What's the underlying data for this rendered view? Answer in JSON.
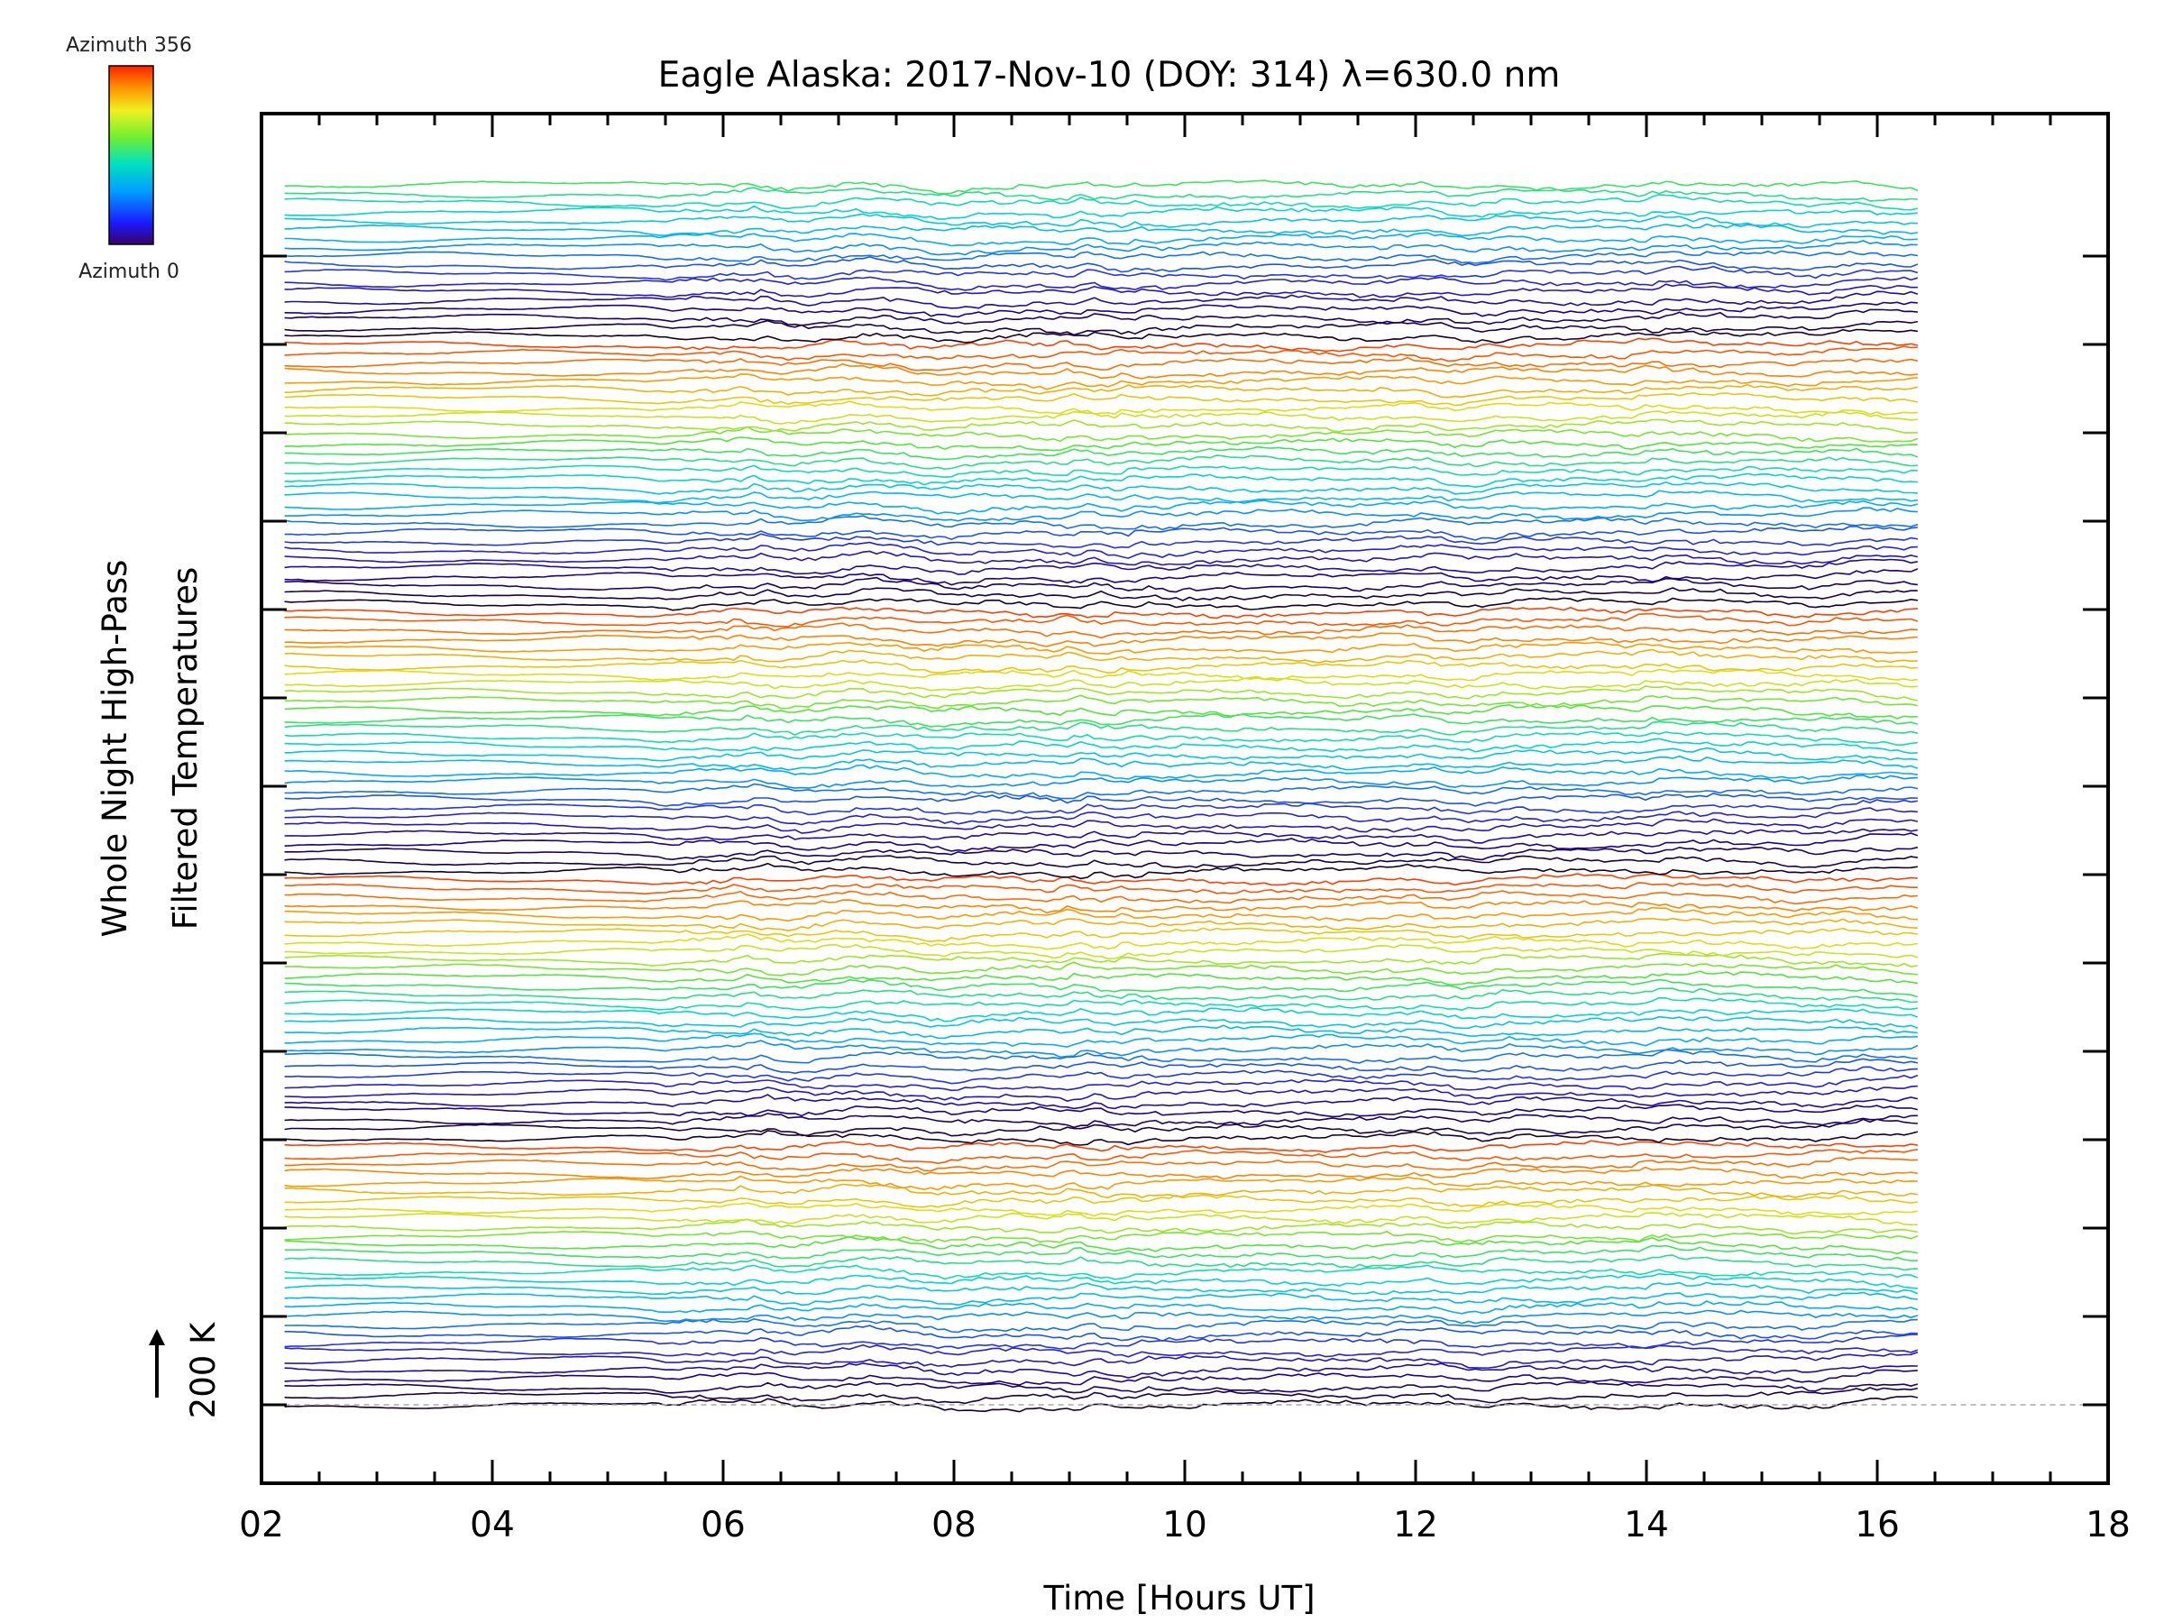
{
  "chart_data": {
    "type": "line",
    "title": "Eagle Alaska: 2017-Nov-10 (DOY: 314) λ=630.0 nm",
    "xlabel": "Time [Hours UT]",
    "ylabel_line1": "Whole Night High-Pass",
    "ylabel_line2": "Filtered Temperatures",
    "scale_label": "200 K",
    "xlim": [
      2,
      18
    ],
    "x_ticks": [
      "02",
      "04",
      "06",
      "08",
      "10",
      "12",
      "14",
      "16",
      "18"
    ],
    "time_range": [
      2.2,
      16.35
    ],
    "trace_count": 138,
    "traces_per_sweep": 30,
    "colorbar": {
      "top_label": "Azimuth 356",
      "bottom_label": "Azimuth 0",
      "colormap": "rainbow"
    },
    "grid": false
  },
  "colors": {
    "axis": "#000000",
    "baseline": "#aaaaaa"
  }
}
